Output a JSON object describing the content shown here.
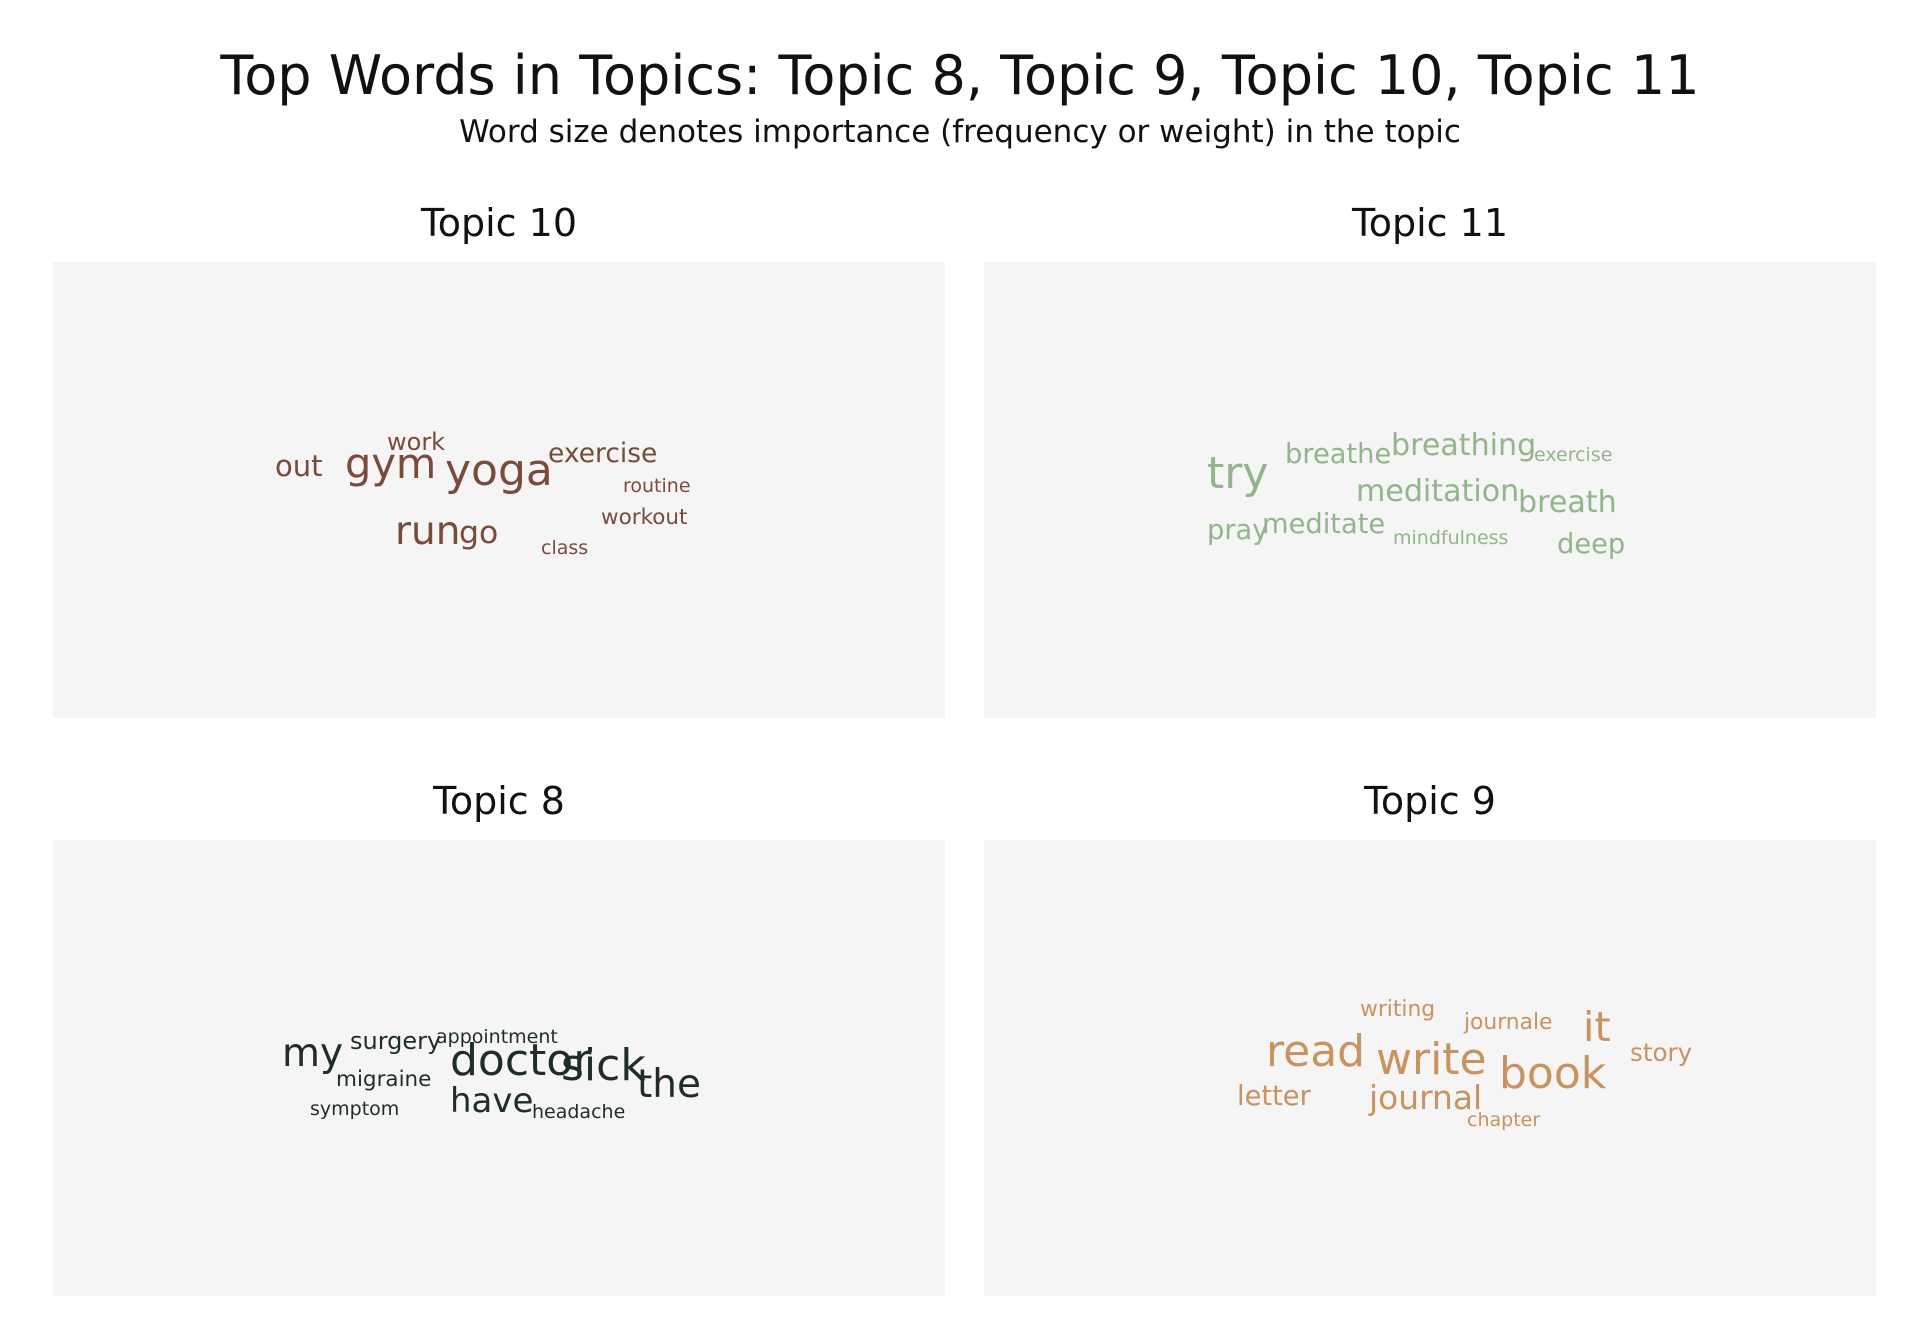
{
  "title": "Top Words in Topics: Topic 8, Topic 9, Topic 10, Topic 11",
  "subtitle": "Word size denotes importance (frequency or weight) in the topic",
  "chart_data": [
    {
      "type": "wordcloud",
      "title": "Topic 10",
      "color": "#7a4a3a",
      "words": [
        {
          "text": "yoga",
          "weight": 10
        },
        {
          "text": "gym",
          "weight": 9.5
        },
        {
          "text": "run",
          "weight": 9
        },
        {
          "text": "go",
          "weight": 7.5
        },
        {
          "text": "out",
          "weight": 7
        },
        {
          "text": "exercise",
          "weight": 6.5
        },
        {
          "text": "work",
          "weight": 6
        },
        {
          "text": "workout",
          "weight": 5.5
        },
        {
          "text": "routine",
          "weight": 5
        },
        {
          "text": "class",
          "weight": 5
        }
      ]
    },
    {
      "type": "wordcloud",
      "title": "Topic 11",
      "color": "#92b58c",
      "words": [
        {
          "text": "try",
          "weight": 10
        },
        {
          "text": "meditation",
          "weight": 7.5
        },
        {
          "text": "breath",
          "weight": 7.5
        },
        {
          "text": "breathing",
          "weight": 7.5
        },
        {
          "text": "breathe",
          "weight": 7
        },
        {
          "text": "pray",
          "weight": 7
        },
        {
          "text": "meditate",
          "weight": 7
        },
        {
          "text": "deep",
          "weight": 7
        },
        {
          "text": "exercise",
          "weight": 5.5
        },
        {
          "text": "mindfulness",
          "weight": 5.5
        }
      ]
    },
    {
      "type": "wordcloud",
      "title": "Topic 8",
      "color": "#1f2d2a",
      "words": [
        {
          "text": "doctor",
          "weight": 10
        },
        {
          "text": "sick",
          "weight": 10
        },
        {
          "text": "my",
          "weight": 9
        },
        {
          "text": "the",
          "weight": 9
        },
        {
          "text": "have",
          "weight": 8
        },
        {
          "text": "surgery",
          "weight": 6
        },
        {
          "text": "migraine",
          "weight": 5.5
        },
        {
          "text": "appointment",
          "weight": 5
        },
        {
          "text": "symptom",
          "weight": 5
        },
        {
          "text": "headache",
          "weight": 5
        }
      ]
    },
    {
      "type": "wordcloud",
      "title": "Topic 9",
      "color": "#c9935f",
      "words": [
        {
          "text": "read",
          "weight": 10
        },
        {
          "text": "write",
          "weight": 10
        },
        {
          "text": "book",
          "weight": 10
        },
        {
          "text": "it",
          "weight": 9.5
        },
        {
          "text": "journal",
          "weight": 8
        },
        {
          "text": "letter",
          "weight": 7
        },
        {
          "text": "story",
          "weight": 6.5
        },
        {
          "text": "writing",
          "weight": 6
        },
        {
          "text": "journale",
          "weight": 6
        },
        {
          "text": "chapter",
          "weight": 5.5
        }
      ]
    }
  ]
}
